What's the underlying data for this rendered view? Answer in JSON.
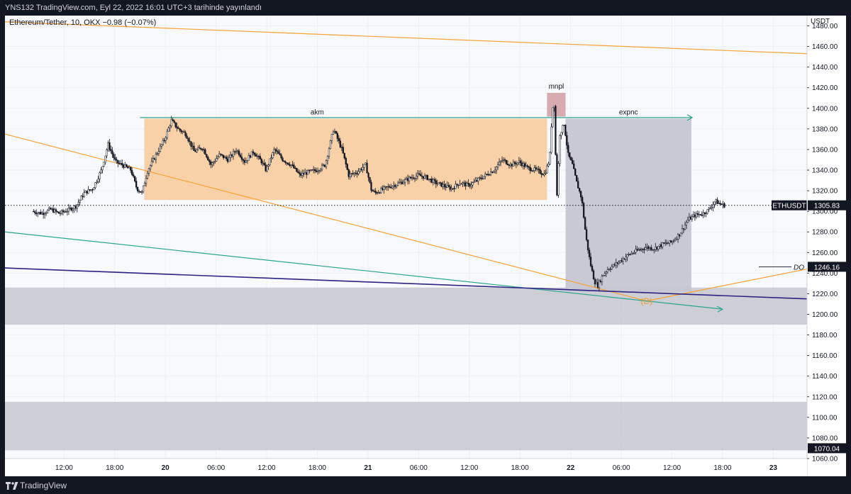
{
  "header": {
    "publish_info": "YNS132 TradingView.com, Eyl 22, 2022 16:01 UTC+3 tarihinde yayınlandı"
  },
  "legend": {
    "text": "Ethereum/Tether, 10, OKX  −0.98 (−0.07%)"
  },
  "footer": {
    "brand": "TradingView",
    "logo_icon": "tradingview-logo-icon"
  },
  "colors": {
    "accumulation_zone": "#f8cfa4",
    "expansion_zone": "#c5c6d2",
    "manipulation_zone": "#d6a6ad",
    "support_zone": "#c8c9d2",
    "orange_line": "#f7a335",
    "green_line": "#2aa58c",
    "navy_line": "#2c2383",
    "candle": "#131722",
    "label_orange": "#f09a2a"
  },
  "chart_data": {
    "type": "candlestick",
    "symbol": "ETHUSDT",
    "axis_unit": "USDT",
    "ylim": [
      1060,
      1490
    ],
    "y_ticks": [
      1060,
      1080,
      1100,
      1120,
      1140,
      1160,
      1180,
      1200,
      1220,
      1240,
      1260,
      1280,
      1300,
      1320,
      1340,
      1360,
      1380,
      1400,
      1420,
      1440,
      1460,
      1480
    ],
    "x_ticks": [
      {
        "label": "12:00",
        "hours": 12
      },
      {
        "label": "18:00",
        "hours": 18
      },
      {
        "label": "20",
        "hours": 24
      },
      {
        "label": "06:00",
        "hours": 30
      },
      {
        "label": "12:00",
        "hours": 36
      },
      {
        "label": "18:00",
        "hours": 42
      },
      {
        "label": "21",
        "hours": 48
      },
      {
        "label": "06:00",
        "hours": 54
      },
      {
        "label": "12:00",
        "hours": 60
      },
      {
        "label": "18:00",
        "hours": 66
      },
      {
        "label": "22",
        "hours": 72
      },
      {
        "label": "06:00",
        "hours": 78
      },
      {
        "label": "12:00",
        "hours": 84
      },
      {
        "label": "18:00",
        "hours": 90
      },
      {
        "label": "23",
        "hours": 96
      }
    ],
    "price_path": [
      [
        8.3,
        1300
      ],
      [
        9.5,
        1298
      ],
      [
        10.5,
        1302
      ],
      [
        11.5,
        1298
      ],
      [
        12.5,
        1301
      ],
      [
        13.5,
        1305
      ],
      [
        14.5,
        1318
      ],
      [
        15.5,
        1322
      ],
      [
        16.5,
        1340
      ],
      [
        17.3,
        1365
      ],
      [
        18.2,
        1348
      ],
      [
        19.0,
        1345
      ],
      [
        20.0,
        1340
      ],
      [
        20.7,
        1322
      ],
      [
        21.3,
        1318
      ],
      [
        22.0,
        1340
      ],
      [
        23.0,
        1355
      ],
      [
        24.0,
        1370
      ],
      [
        24.8,
        1388
      ],
      [
        25.6,
        1380
      ],
      [
        26.5,
        1375
      ],
      [
        27.5,
        1358
      ],
      [
        28.5,
        1362
      ],
      [
        29.5,
        1345
      ],
      [
        30.5,
        1355
      ],
      [
        31.5,
        1350
      ],
      [
        32.5,
        1360
      ],
      [
        33.5,
        1348
      ],
      [
        34.5,
        1358
      ],
      [
        35.5,
        1348
      ],
      [
        36.0,
        1340
      ],
      [
        37.0,
        1360
      ],
      [
        38.0,
        1350
      ],
      [
        39.0,
        1345
      ],
      [
        40.0,
        1335
      ],
      [
        41.0,
        1338
      ],
      [
        42.0,
        1340
      ],
      [
        43.0,
        1345
      ],
      [
        44.0,
        1380
      ],
      [
        45.0,
        1360
      ],
      [
        45.8,
        1335
      ],
      [
        46.8,
        1338
      ],
      [
        47.8,
        1345
      ],
      [
        48.5,
        1320
      ],
      [
        49.0,
        1318
      ],
      [
        50.0,
        1322
      ],
      [
        51.0,
        1325
      ],
      [
        52.0,
        1328
      ],
      [
        53.0,
        1332
      ],
      [
        54.0,
        1335
      ],
      [
        55.0,
        1333
      ],
      [
        56.0,
        1328
      ],
      [
        57.0,
        1325
      ],
      [
        58.0,
        1322
      ],
      [
        59.0,
        1328
      ],
      [
        60.0,
        1325
      ],
      [
        61.0,
        1330
      ],
      [
        62.0,
        1335
      ],
      [
        63.0,
        1340
      ],
      [
        64.0,
        1350
      ],
      [
        65.0,
        1345
      ],
      [
        66.0,
        1348
      ],
      [
        67.0,
        1342
      ],
      [
        68.0,
        1340
      ],
      [
        69.0,
        1336
      ],
      [
        69.6,
        1350
      ],
      [
        69.9,
        1400
      ],
      [
        70.2,
        1405
      ],
      [
        70.4,
        1305
      ],
      [
        70.8,
        1375
      ],
      [
        71.3,
        1385
      ],
      [
        71.8,
        1355
      ],
      [
        72.3,
        1345
      ],
      [
        72.8,
        1328
      ],
      [
        73.4,
        1312
      ],
      [
        73.9,
        1275
      ],
      [
        74.4,
        1250
      ],
      [
        74.9,
        1232
      ],
      [
        75.3,
        1228
      ],
      [
        75.9,
        1238
      ],
      [
        76.5,
        1244
      ],
      [
        77.3,
        1248
      ],
      [
        78.0,
        1252
      ],
      [
        79.0,
        1258
      ],
      [
        80.0,
        1262
      ],
      [
        81.0,
        1265
      ],
      [
        82.0,
        1264
      ],
      [
        83.0,
        1268
      ],
      [
        84.0,
        1270
      ],
      [
        85.0,
        1278
      ],
      [
        86.0,
        1292
      ],
      [
        86.8,
        1296
      ],
      [
        87.8,
        1298
      ],
      [
        88.5,
        1302
      ],
      [
        89.2,
        1310
      ],
      [
        89.8,
        1307
      ],
      [
        90.3,
        1305.83
      ]
    ],
    "last_price": {
      "label": "ETHUSDT",
      "value": "1305.83",
      "price": 1305.83
    },
    "daily_open": {
      "label": "DO",
      "value": "1246.16",
      "price": 1246.16
    },
    "low_marker": {
      "value": "1070.04",
      "price": 1070.04
    },
    "annotations": {
      "accumulation": {
        "label": "akm",
        "t_start": 21.5,
        "t_end": 69.2,
        "price_top": 1390,
        "price_bottom": 1311
      },
      "manipulation": {
        "label": "mnpl",
        "t_start": 69.2,
        "t_end": 71.4,
        "price_top": 1415,
        "price_bottom": 1392
      },
      "expansion": {
        "label": "expnc",
        "t_start": 71.4,
        "t_end": 86.3,
        "price_top": 1390,
        "price_bottom": 1222
      },
      "pattern_point": {
        "label": "(D)",
        "t": 81.0,
        "price": 1210
      }
    },
    "zones": [
      {
        "name": "support-zone",
        "t_start": 5,
        "t_end": 100,
        "price_top": 1226,
        "price_bottom": 1190
      },
      {
        "name": "lower-demand-zone",
        "t_start": 5,
        "t_end": 100,
        "price_top": 1115,
        "price_bottom": 1068
      }
    ],
    "lines": [
      {
        "name": "orange-resistance-line",
        "color": "orange",
        "points": [
          [
            5,
            1484
          ],
          [
            100,
            1453
          ]
        ]
      },
      {
        "name": "orange-descending-line",
        "color": "orange",
        "points": [
          [
            5,
            1375
          ],
          [
            81,
            1213
          ]
        ]
      },
      {
        "name": "orange-ascending-line",
        "color": "orange",
        "points": [
          [
            81,
            1213
          ],
          [
            100,
            1244
          ]
        ]
      },
      {
        "name": "green-descending-line",
        "color": "green",
        "points": [
          [
            5,
            1280
          ],
          [
            90,
            1205
          ]
        ]
      },
      {
        "name": "navy-descending-line",
        "color": "navy",
        "points": [
          [
            5,
            1245
          ],
          [
            100,
            1215
          ]
        ]
      },
      {
        "name": "green-range-top-line",
        "color": "green",
        "points": [
          [
            21,
            1391
          ],
          [
            86.4,
            1391
          ]
        ]
      }
    ]
  }
}
